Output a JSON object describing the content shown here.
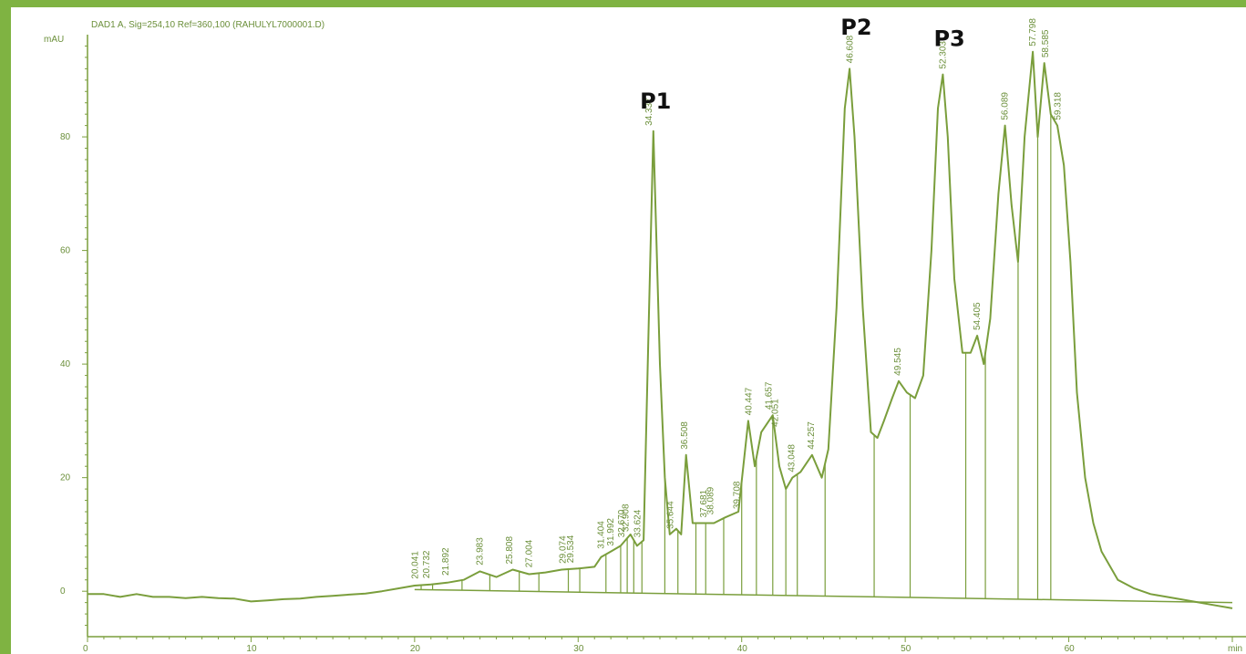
{
  "chart_data": {
    "type": "line",
    "title": "DAD1 A, Sig=254,10 Ref=360,100 (RAHULYL7000001.D)",
    "ylabel": "mAU",
    "xlabel": "min",
    "xlim": [
      0,
      70
    ],
    "ylim": [
      -8,
      98
    ],
    "xticks": [
      0,
      10,
      20,
      30,
      40,
      50,
      60,
      70
    ],
    "yticks": [
      0,
      20,
      40,
      60,
      80
    ],
    "grid": false,
    "colors": {
      "trace": "#7a9e3c",
      "frame": "#7fb342",
      "annotation": "#111111"
    },
    "series": [
      {
        "x": [
          0,
          1,
          2,
          3,
          4,
          5,
          6,
          7,
          8,
          9,
          10,
          11,
          12,
          13,
          14,
          15,
          16,
          17,
          18,
          19,
          20,
          21,
          22,
          23,
          24,
          25,
          26,
          27,
          28,
          29,
          30,
          31,
          31.4,
          32,
          32.6,
          33.2,
          33.6,
          34,
          34.3,
          34.6,
          35,
          35.3,
          35.6,
          36,
          36.3,
          36.6,
          37,
          37.3,
          37.8,
          38.3,
          39,
          39.8,
          40.4,
          40.8,
          41.2,
          41.9,
          42.3,
          42.7,
          43.1,
          43.6,
          44.3,
          44.9,
          45.3,
          45.8,
          46.3,
          46.6,
          46.9,
          47.4,
          47.9,
          48.3,
          48.7,
          49.2,
          49.6,
          50.1,
          50.6,
          51.1,
          51.6,
          52.0,
          52.3,
          52.6,
          53.0,
          53.5,
          54.0,
          54.4,
          54.8,
          55.2,
          55.7,
          56.1,
          56.5,
          56.9,
          57.3,
          57.8,
          58.1,
          58.5,
          58.9,
          59.3,
          59.7,
          60.1,
          60.5,
          61,
          61.5,
          62,
          63,
          64,
          65,
          66,
          67,
          68,
          69,
          70
        ],
        "y": [
          -0.5,
          -0.5,
          -1,
          -0.5,
          -1,
          -1,
          -1.2,
          -1,
          -1.2,
          -1.3,
          -1.8,
          -1.6,
          -1.4,
          -1.3,
          -1,
          -0.8,
          -0.6,
          -0.4,
          0,
          0.5,
          1,
          1.2,
          1.5,
          2,
          3.5,
          2.5,
          3.8,
          3,
          3.3,
          3.8,
          4,
          4.3,
          6,
          7,
          8,
          10,
          8,
          9,
          45,
          81,
          40,
          20,
          10,
          11,
          10,
          24,
          12,
          12,
          12,
          12,
          13,
          14,
          30,
          22,
          28,
          31,
          22,
          18,
          20,
          21,
          24,
          20,
          25,
          50,
          85,
          92,
          80,
          50,
          28,
          27,
          30,
          34,
          37,
          35,
          34,
          38,
          60,
          85,
          91,
          80,
          55,
          42,
          42,
          45,
          40,
          48,
          70,
          82,
          68,
          58,
          80,
          95,
          80,
          93,
          84,
          82,
          75,
          58,
          35,
          20,
          12,
          7,
          2,
          0.5,
          -0.5,
          -1,
          -1.5,
          -2,
          -2.5,
          -3
        ],
        "baseline_x": [
          20,
          70
        ],
        "baseline_y": [
          0.3,
          -2
        ]
      }
    ],
    "peaks": [
      {
        "label": "20.041",
        "x": 20.041,
        "y": 1.2
      },
      {
        "label": "20.732",
        "x": 20.732,
        "y": 1.3
      },
      {
        "label": "21.892",
        "x": 21.892,
        "y": 1.8
      },
      {
        "label": "23.983",
        "x": 23.983,
        "y": 3.6
      },
      {
        "label": "25.808",
        "x": 25.808,
        "y": 3.8
      },
      {
        "label": "27.004",
        "x": 27.004,
        "y": 3.2
      },
      {
        "label": "29.074",
        "x": 29.074,
        "y": 3.9
      },
      {
        "label": "29.534",
        "x": 29.534,
        "y": 4.0
      },
      {
        "label": "31.404",
        "x": 31.404,
        "y": 6.5
      },
      {
        "label": "31.992",
        "x": 31.992,
        "y": 7.0
      },
      {
        "label": "32.670",
        "x": 32.67,
        "y": 8.5
      },
      {
        "label": "32.908",
        "x": 32.908,
        "y": 9.5
      },
      {
        "label": "33.624",
        "x": 33.624,
        "y": 8.5
      },
      {
        "label": "34.337",
        "x": 34.337,
        "y": 81
      },
      {
        "label": "35.644",
        "x": 35.644,
        "y": 10
      },
      {
        "label": "36.508",
        "x": 36.508,
        "y": 24
      },
      {
        "label": "37.681",
        "x": 37.681,
        "y": 12
      },
      {
        "label": "38.089",
        "x": 38.089,
        "y": 12.5
      },
      {
        "label": "39.708",
        "x": 39.708,
        "y": 13.5
      },
      {
        "label": "40.447",
        "x": 40.447,
        "y": 30
      },
      {
        "label": "41.657",
        "x": 41.657,
        "y": 31
      },
      {
        "label": "42.051",
        "x": 42.051,
        "y": 28
      },
      {
        "label": "43.048",
        "x": 43.048,
        "y": 20
      },
      {
        "label": "44.257",
        "x": 44.257,
        "y": 24
      },
      {
        "label": "46.608",
        "x": 46.608,
        "y": 92
      },
      {
        "label": "49.545",
        "x": 49.545,
        "y": 37
      },
      {
        "label": "52.303",
        "x": 52.303,
        "y": 91
      },
      {
        "label": "54.405",
        "x": 54.405,
        "y": 45
      },
      {
        "label": "56.089",
        "x": 56.089,
        "y": 82
      },
      {
        "label": "57.798",
        "x": 57.798,
        "y": 95
      },
      {
        "label": "58.585",
        "x": 58.585,
        "y": 93
      },
      {
        "label": "59.318",
        "x": 59.318,
        "y": 82
      }
    ],
    "drop_lines_x": [
      20.4,
      21.1,
      22.9,
      24.6,
      26.4,
      27.6,
      29.4,
      30.1,
      31.7,
      32.6,
      33.0,
      33.4,
      33.9,
      35.3,
      36.1,
      37.2,
      37.8,
      38.9,
      40.0,
      40.9,
      41.9,
      42.7,
      43.4,
      45.1,
      48.1,
      50.3,
      53.7,
      54.9,
      56.9,
      58.1,
      58.9
    ],
    "annotations": [
      {
        "text": "P1",
        "x": 34.337,
        "y": 85
      },
      {
        "text": "P2",
        "x": 46.608,
        "y": 98
      },
      {
        "text": "P3",
        "x": 52.303,
        "y": 96
      }
    ]
  }
}
